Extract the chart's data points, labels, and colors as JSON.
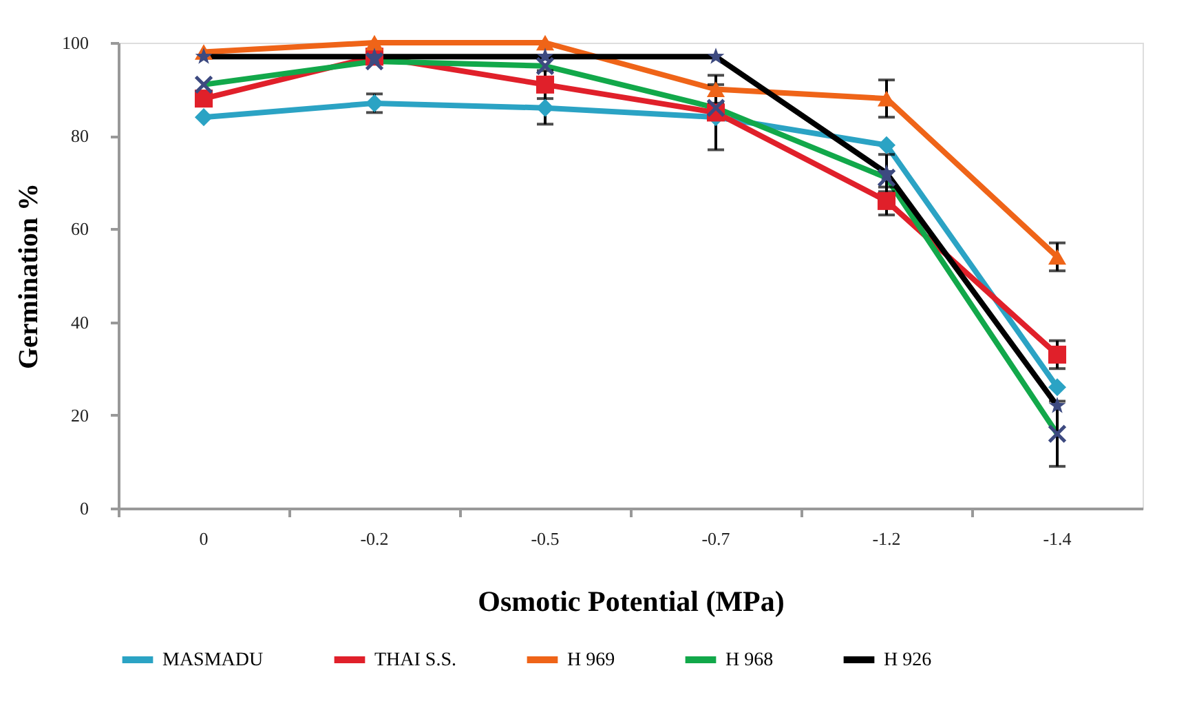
{
  "chart_data": {
    "type": "line",
    "xlabel": "Osmotic Potential (MPa)",
    "ylabel": "Germination %",
    "categories": [
      "0",
      "-0.2",
      "-0.5",
      "-0.7",
      "-1.2",
      "-1.4"
    ],
    "ylim": [
      0,
      100
    ],
    "yticks": [
      0,
      20,
      40,
      60,
      80,
      100
    ],
    "grid": false,
    "legend": "bottom",
    "line_style": "solid",
    "series": [
      {
        "name": "MASMADU",
        "color": "#2ba3c4",
        "marker": "diamond",
        "values": [
          84,
          87,
          86,
          84,
          78,
          26
        ],
        "errors": [
          null,
          2,
          3.5,
          7,
          null,
          null
        ]
      },
      {
        "name": "THAI S.S.",
        "color": "#e0202a",
        "marker": "square",
        "values": [
          88,
          97,
          91,
          85,
          66,
          33
        ],
        "errors": [
          null,
          null,
          3,
          null,
          3,
          3
        ]
      },
      {
        "name": "H 969",
        "color": "#ef6418",
        "marker": "triangle",
        "values": [
          98,
          100,
          100,
          90,
          88,
          54
        ],
        "errors": [
          null,
          null,
          null,
          3,
          4,
          3
        ]
      },
      {
        "name": "H 968",
        "color": "#12a84a",
        "marker": "cross",
        "values": [
          91,
          96,
          95,
          86,
          71,
          16
        ],
        "errors": [
          null,
          null,
          null,
          null,
          null,
          7
        ]
      },
      {
        "name": "H 926",
        "color": "#000000",
        "marker": "star",
        "values": [
          97,
          97,
          97,
          97,
          72,
          22
        ],
        "errors": [
          null,
          null,
          null,
          null,
          4,
          null
        ]
      }
    ]
  }
}
